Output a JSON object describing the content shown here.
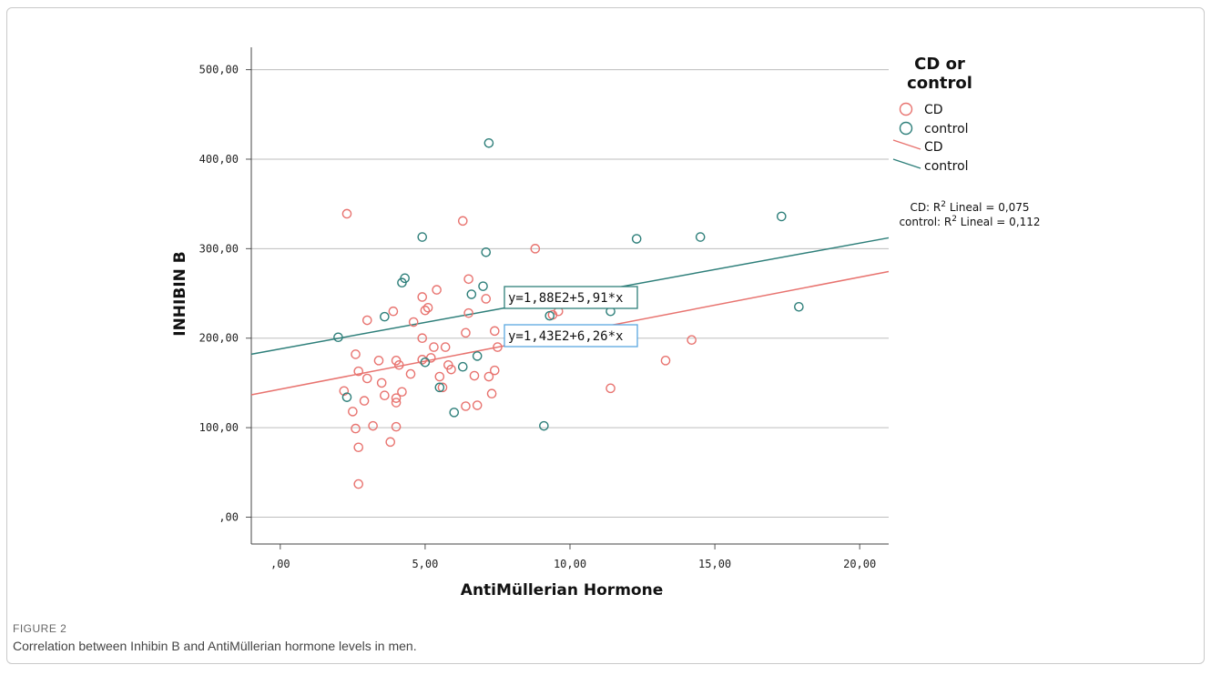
{
  "figure": {
    "label": "FIGURE 2",
    "caption": "Correlation between Inhibin B and AntiMüllerian hormone levels in men."
  },
  "chart_data": {
    "type": "scatter",
    "title": "",
    "xlabel": "AntiMüllerian Hormone",
    "ylabel": "INHIBIN B",
    "xlim": [
      -1,
      21
    ],
    "ylim": [
      -30,
      525
    ],
    "x_ticks": [
      0,
      5,
      10,
      15,
      20
    ],
    "x_tick_labels": [
      ",00",
      "5,00",
      "10,00",
      "15,00",
      "20,00"
    ],
    "y_ticks": [
      0,
      100,
      200,
      300,
      400,
      500
    ],
    "y_tick_labels": [
      ",00",
      "100,00",
      "200,00",
      "300,00",
      "400,00",
      "500,00"
    ],
    "grid": "horizontal",
    "legend": {
      "title": "CD or control",
      "title_lines": [
        "CD or",
        "control"
      ],
      "placement": "right",
      "marker_entries": [
        "CD",
        "control"
      ],
      "line_entries": [
        "CD",
        "control"
      ]
    },
    "r2_annotations": [
      {
        "series": "CD",
        "prefix": "CD: R",
        "suffix": " Lineal = 0,075"
      },
      {
        "series": "control",
        "prefix": "control: R",
        "suffix": " Lineal = 0,112"
      }
    ],
    "series": [
      {
        "name": "CD",
        "color": "#e8736f",
        "marker": "open-circle",
        "equation": "y=1,43E2+6,26*x",
        "intercept": 143,
        "slope": 6.26,
        "points": [
          [
            2.3,
            339
          ],
          [
            6.3,
            331
          ],
          [
            8.8,
            300
          ],
          [
            6.5,
            266
          ],
          [
            5.4,
            254
          ],
          [
            4.9,
            246
          ],
          [
            7.1,
            244
          ],
          [
            5.1,
            234
          ],
          [
            5.0,
            231
          ],
          [
            3.0,
            220
          ],
          [
            4.6,
            218
          ],
          [
            6.5,
            228
          ],
          [
            9.4,
            226
          ],
          [
            9.6,
            230
          ],
          [
            3.9,
            230
          ],
          [
            7.4,
            208
          ],
          [
            6.4,
            206
          ],
          [
            4.9,
            200
          ],
          [
            14.2,
            198
          ],
          [
            7.5,
            190
          ],
          [
            5.7,
            190
          ],
          [
            5.3,
            190
          ],
          [
            2.6,
            182
          ],
          [
            4.0,
            175
          ],
          [
            3.4,
            175
          ],
          [
            4.9,
            176
          ],
          [
            5.2,
            178
          ],
          [
            13.3,
            175
          ],
          [
            5.8,
            170
          ],
          [
            4.1,
            170
          ],
          [
            5.9,
            165
          ],
          [
            7.4,
            164
          ],
          [
            2.7,
            163
          ],
          [
            4.5,
            160
          ],
          [
            6.7,
            158
          ],
          [
            5.5,
            157
          ],
          [
            7.2,
            157
          ],
          [
            3.0,
            155
          ],
          [
            3.5,
            150
          ],
          [
            5.6,
            145
          ],
          [
            11.4,
            144
          ],
          [
            2.2,
            141
          ],
          [
            4.2,
            140
          ],
          [
            7.3,
            138
          ],
          [
            3.6,
            136
          ],
          [
            4.0,
            133
          ],
          [
            2.9,
            130
          ],
          [
            4.0,
            128
          ],
          [
            6.4,
            124
          ],
          [
            6.8,
            125
          ],
          [
            2.5,
            118
          ],
          [
            4.0,
            101
          ],
          [
            3.2,
            102
          ],
          [
            2.6,
            99
          ],
          [
            3.8,
            84
          ],
          [
            2.7,
            78
          ],
          [
            2.7,
            37
          ]
        ]
      },
      {
        "name": "control",
        "color": "#2e7f7a",
        "marker": "open-circle",
        "equation": "y=1,88E2+5,91*x",
        "intercept": 188,
        "slope": 5.91,
        "points": [
          [
            7.2,
            418
          ],
          [
            17.3,
            336
          ],
          [
            4.9,
            313
          ],
          [
            12.3,
            311
          ],
          [
            14.5,
            313
          ],
          [
            7.1,
            296
          ],
          [
            4.3,
            267
          ],
          [
            4.2,
            262
          ],
          [
            7.0,
            258
          ],
          [
            6.6,
            249
          ],
          [
            9.3,
            225
          ],
          [
            11.4,
            230
          ],
          [
            17.9,
            235
          ],
          [
            3.6,
            224
          ],
          [
            2.0,
            201
          ],
          [
            6.8,
            180
          ],
          [
            5.0,
            173
          ],
          [
            6.3,
            168
          ],
          [
            5.5,
            145
          ],
          [
            2.3,
            134
          ],
          [
            6.0,
            117
          ],
          [
            9.1,
            102
          ]
        ]
      }
    ]
  }
}
